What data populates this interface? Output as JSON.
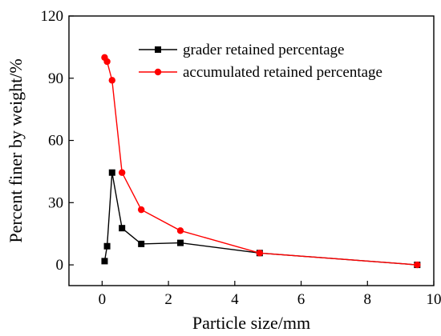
{
  "chart_data": {
    "type": "line",
    "title": "",
    "xlabel": "Particle size/mm",
    "ylabel": "Percent finer by weight/%",
    "xlim": [
      -1,
      10
    ],
    "ylim": [
      -10,
      120
    ],
    "xticks": [
      0,
      2,
      4,
      6,
      8,
      10
    ],
    "yticks": [
      0,
      30,
      60,
      90,
      120
    ],
    "grid": false,
    "legend_position": "top-right",
    "series": [
      {
        "name": "grader retained percentage",
        "color": "#000000",
        "marker": "square",
        "x": [
          0.075,
          0.15,
          0.3,
          0.6,
          1.18,
          2.36,
          4.75,
          9.5
        ],
        "y": [
          1.8,
          9.0,
          44.5,
          17.7,
          10.1,
          10.6,
          5.7,
          0.0
        ]
      },
      {
        "name": "accumulated retained percentage",
        "color": "#ff0000",
        "marker": "circle",
        "x": [
          0.075,
          0.15,
          0.3,
          0.6,
          1.18,
          2.36,
          4.75,
          9.5
        ],
        "y": [
          100.0,
          98.0,
          89.0,
          44.5,
          26.6,
          16.5,
          5.7,
          0.0
        ]
      }
    ]
  }
}
